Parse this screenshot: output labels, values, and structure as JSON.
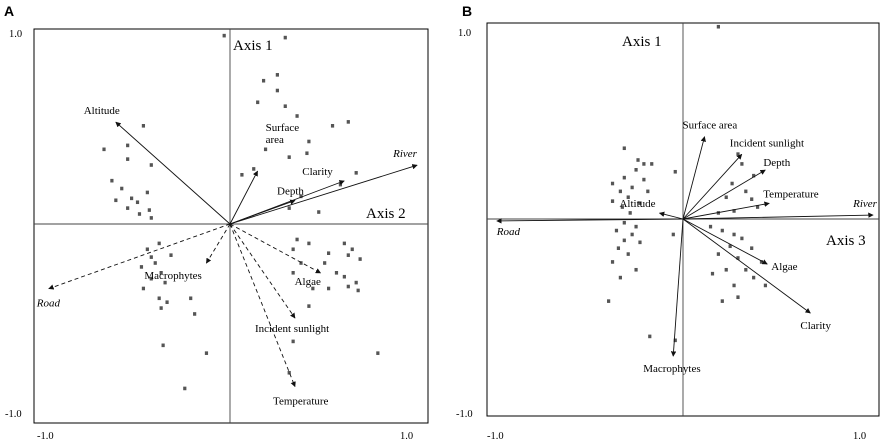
{
  "chart_data": [
    {
      "panel": "A",
      "type": "scatter",
      "subtype": "biplot",
      "xlim": [
        -1.0,
        1.0
      ],
      "ylim": [
        -1.0,
        1.0
      ],
      "tick_labels": {
        "top": "1.0",
        "bottom": "-1.0",
        "left": "-1.0",
        "right": "1.0"
      },
      "axis_labels": {
        "vertical": "Axis 1",
        "horizontal": "Axis 2"
      },
      "vectors": [
        {
          "name": "Altitude",
          "x": -0.58,
          "y": 0.52,
          "dashed": false
        },
        {
          "name": "Surface area",
          "x": 0.14,
          "y": 0.27,
          "dashed": false
        },
        {
          "name": "Depth",
          "x": 0.33,
          "y": 0.12,
          "dashed": false
        },
        {
          "name": "Clarity",
          "x": 0.58,
          "y": 0.22,
          "dashed": false
        },
        {
          "name": "River",
          "x": 0.95,
          "y": 0.3,
          "dashed": false,
          "italic": true
        },
        {
          "name": "Road",
          "x": -0.92,
          "y": -0.33,
          "dashed": true,
          "italic": true
        },
        {
          "name": "Macrophytes",
          "x": -0.12,
          "y": -0.2,
          "dashed": true
        },
        {
          "name": "Algae",
          "x": 0.46,
          "y": -0.25,
          "dashed": true
        },
        {
          "name": "Incident sunlight",
          "x": 0.33,
          "y": -0.48,
          "dashed": true
        },
        {
          "name": "Temperature",
          "x": 0.33,
          "y": -0.83,
          "dashed": true
        }
      ],
      "sites": [
        [
          -0.03,
          0.96
        ],
        [
          0.28,
          0.95
        ],
        [
          0.24,
          0.76
        ],
        [
          0.17,
          0.73
        ],
        [
          0.24,
          0.68
        ],
        [
          0.14,
          0.62
        ],
        [
          0.28,
          0.6
        ],
        [
          0.34,
          0.55
        ],
        [
          0.6,
          0.52
        ],
        [
          0.52,
          0.5
        ],
        [
          0.4,
          0.42
        ],
        [
          0.18,
          0.38
        ],
        [
          0.39,
          0.36
        ],
        [
          0.3,
          0.34
        ],
        [
          0.12,
          0.28
        ],
        [
          0.06,
          0.25
        ],
        [
          0.56,
          0.2
        ],
        [
          0.64,
          0.26
        ],
        [
          0.36,
          0.14
        ],
        [
          0.3,
          0.08
        ],
        [
          0.45,
          0.06
        ],
        [
          -0.44,
          0.5
        ],
        [
          -0.52,
          0.4
        ],
        [
          -0.64,
          0.38
        ],
        [
          -0.52,
          0.33
        ],
        [
          -0.4,
          0.3
        ],
        [
          -0.6,
          0.22
        ],
        [
          -0.55,
          0.18
        ],
        [
          -0.42,
          0.16
        ],
        [
          -0.5,
          0.13
        ],
        [
          -0.47,
          0.11
        ],
        [
          -0.58,
          0.12
        ],
        [
          -0.52,
          0.08
        ],
        [
          -0.41,
          0.07
        ],
        [
          -0.46,
          0.05
        ],
        [
          -0.4,
          0.03
        ],
        [
          -0.36,
          -0.1
        ],
        [
          -0.42,
          -0.13
        ],
        [
          -0.4,
          -0.17
        ],
        [
          -0.3,
          -0.16
        ],
        [
          -0.38,
          -0.2
        ],
        [
          -0.45,
          -0.22
        ],
        [
          -0.35,
          -0.25
        ],
        [
          -0.4,
          -0.28
        ],
        [
          -0.33,
          -0.3
        ],
        [
          -0.44,
          -0.33
        ],
        [
          -0.36,
          -0.38
        ],
        [
          -0.32,
          -0.4
        ],
        [
          -0.2,
          -0.38
        ],
        [
          -0.35,
          -0.43
        ],
        [
          -0.18,
          -0.46
        ],
        [
          -0.34,
          -0.62
        ],
        [
          -0.12,
          -0.66
        ],
        [
          -0.23,
          -0.84
        ],
        [
          0.34,
          -0.08
        ],
        [
          0.4,
          -0.1
        ],
        [
          0.32,
          -0.13
        ],
        [
          0.58,
          -0.1
        ],
        [
          0.62,
          -0.13
        ],
        [
          0.5,
          -0.15
        ],
        [
          0.6,
          -0.16
        ],
        [
          0.66,
          -0.18
        ],
        [
          0.48,
          -0.2
        ],
        [
          0.36,
          -0.2
        ],
        [
          0.32,
          -0.25
        ],
        [
          0.54,
          -0.25
        ],
        [
          0.58,
          -0.27
        ],
        [
          0.64,
          -0.3
        ],
        [
          0.6,
          -0.32
        ],
        [
          0.5,
          -0.33
        ],
        [
          0.42,
          -0.33
        ],
        [
          0.65,
          -0.34
        ],
        [
          0.4,
          -0.42
        ],
        [
          0.32,
          -0.6
        ],
        [
          0.3,
          -0.76
        ],
        [
          0.75,
          -0.66
        ]
      ]
    },
    {
      "panel": "B",
      "type": "scatter",
      "subtype": "biplot",
      "xlim": [
        -1.0,
        1.0
      ],
      "ylim": [
        -1.0,
        1.0
      ],
      "tick_labels": {
        "top": "1.0",
        "bottom": "-1.0",
        "left": "-1.0",
        "right": "1.0"
      },
      "axis_labels": {
        "vertical": "Axis 1",
        "horizontal": "Axis 3"
      },
      "vectors": [
        {
          "name": "Surface area",
          "x": 0.11,
          "y": 0.42,
          "dashed": false
        },
        {
          "name": "Incident sunlight",
          "x": 0.3,
          "y": 0.33,
          "dashed": false
        },
        {
          "name": "Depth",
          "x": 0.42,
          "y": 0.25,
          "dashed": false
        },
        {
          "name": "Temperature",
          "x": 0.44,
          "y": 0.08,
          "dashed": false
        },
        {
          "name": "River",
          "x": 0.97,
          "y": 0.02,
          "dashed": false,
          "italic": true
        },
        {
          "name": "Altitude",
          "x": -0.12,
          "y": 0.03,
          "dashed": false
        },
        {
          "name": "Road",
          "x": -0.95,
          "y": -0.01,
          "dashed": false,
          "italic": true
        },
        {
          "name": "Macrophytes",
          "x": -0.05,
          "y": -0.7,
          "dashed": false
        },
        {
          "name": "Algae",
          "x": 0.43,
          "y": -0.23,
          "dashed": false
        },
        {
          "name": "Clarity",
          "x": 0.65,
          "y": -0.48,
          "dashed": false
        }
      ],
      "sites": [
        [
          0.18,
          0.98
        ],
        [
          -0.3,
          0.36
        ],
        [
          -0.23,
          0.3
        ],
        [
          -0.2,
          0.28
        ],
        [
          -0.16,
          0.28
        ],
        [
          -0.24,
          0.25
        ],
        [
          -0.04,
          0.24
        ],
        [
          -0.3,
          0.21
        ],
        [
          -0.2,
          0.2
        ],
        [
          -0.36,
          0.18
        ],
        [
          -0.26,
          0.16
        ],
        [
          -0.32,
          0.14
        ],
        [
          -0.18,
          0.14
        ],
        [
          -0.28,
          0.11
        ],
        [
          -0.36,
          0.09
        ],
        [
          -0.22,
          0.08
        ],
        [
          -0.31,
          0.06
        ],
        [
          -0.27,
          0.03
        ],
        [
          0.28,
          0.33
        ],
        [
          0.3,
          0.28
        ],
        [
          0.36,
          0.22
        ],
        [
          0.25,
          0.18
        ],
        [
          0.32,
          0.14
        ],
        [
          0.22,
          0.11
        ],
        [
          0.35,
          0.1
        ],
        [
          0.38,
          0.06
        ],
        [
          0.26,
          0.04
        ],
        [
          0.18,
          0.03
        ],
        [
          -0.3,
          -0.02
        ],
        [
          -0.24,
          -0.04
        ],
        [
          -0.34,
          -0.06
        ],
        [
          -0.26,
          -0.08
        ],
        [
          -0.3,
          -0.11
        ],
        [
          -0.22,
          -0.12
        ],
        [
          -0.33,
          -0.15
        ],
        [
          -0.28,
          -0.18
        ],
        [
          -0.36,
          -0.22
        ],
        [
          -0.24,
          -0.26
        ],
        [
          -0.32,
          -0.3
        ],
        [
          -0.05,
          -0.08
        ],
        [
          -0.38,
          -0.42
        ],
        [
          -0.17,
          -0.6
        ],
        [
          -0.04,
          -0.62
        ],
        [
          0.14,
          -0.04
        ],
        [
          0.2,
          -0.06
        ],
        [
          0.26,
          -0.08
        ],
        [
          0.3,
          -0.1
        ],
        [
          0.24,
          -0.14
        ],
        [
          0.35,
          -0.15
        ],
        [
          0.18,
          -0.18
        ],
        [
          0.28,
          -0.2
        ],
        [
          0.4,
          -0.22
        ],
        [
          0.22,
          -0.26
        ],
        [
          0.32,
          -0.26
        ],
        [
          0.15,
          -0.28
        ],
        [
          0.36,
          -0.3
        ],
        [
          0.26,
          -0.34
        ],
        [
          0.42,
          -0.34
        ],
        [
          0.28,
          -0.4
        ],
        [
          0.2,
          -0.42
        ]
      ]
    }
  ],
  "panels": [
    {
      "letter": "A",
      "axis_v": "Axis 1",
      "axis_h": "Axis 2",
      "ticks": {
        "top": "1.0",
        "bottom": "-1.0",
        "left": "-1.0",
        "right": "1.0"
      }
    },
    {
      "letter": "B",
      "axis_v": "Axis 1",
      "axis_h": "Axis 3",
      "ticks": {
        "top": "1.0",
        "bottom": "-1.0",
        "left": "-1.0",
        "right": "1.0"
      }
    }
  ]
}
